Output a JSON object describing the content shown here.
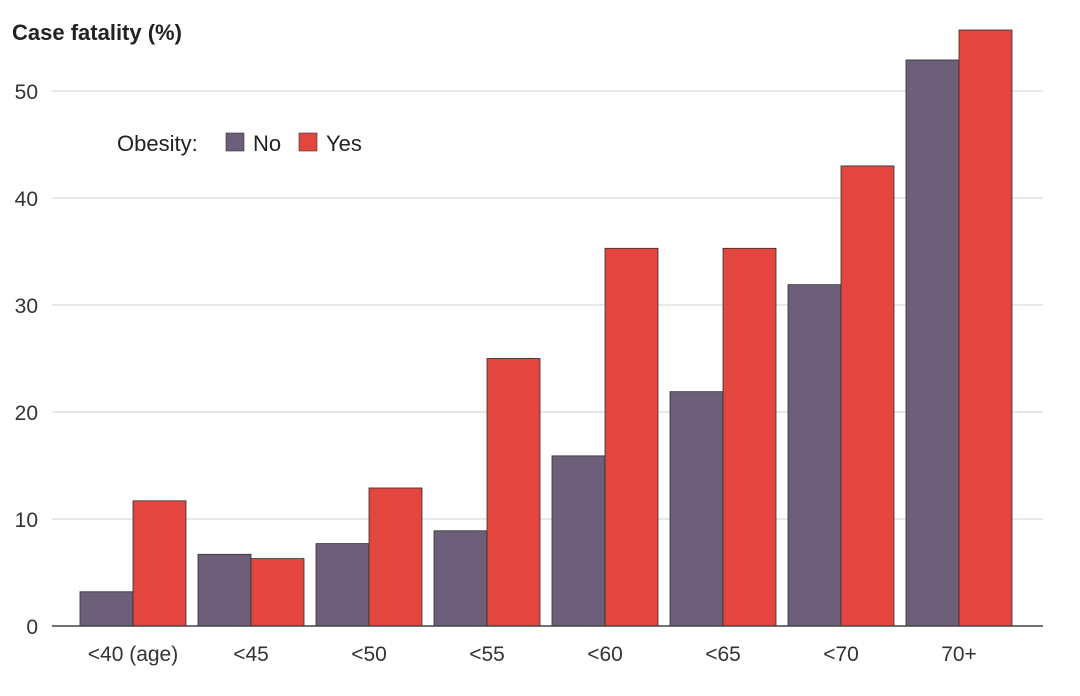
{
  "chart_data": {
    "type": "bar",
    "title": "",
    "ylabel": "Case fatality (%)",
    "xlabel": "",
    "ylim": [
      0,
      55
    ],
    "yticks": [
      0,
      10,
      20,
      30,
      40,
      50
    ],
    "grid": true,
    "categories": [
      "<40 (age)",
      "<45",
      "<50",
      "<55",
      "<60",
      "<65",
      "<70",
      "70+"
    ],
    "legend": {
      "title": "Obesity:",
      "placement": "top-left"
    },
    "series": [
      {
        "name": "No",
        "color": "#6d5f7a",
        "values": [
          3.2,
          6.7,
          7.7,
          8.9,
          15.9,
          21.9,
          31.9,
          52.9
        ]
      },
      {
        "name": "Yes",
        "color": "#e2463f",
        "values": [
          11.7,
          6.3,
          12.9,
          25.0,
          35.3,
          35.3,
          43.0,
          55.7
        ]
      }
    ]
  }
}
